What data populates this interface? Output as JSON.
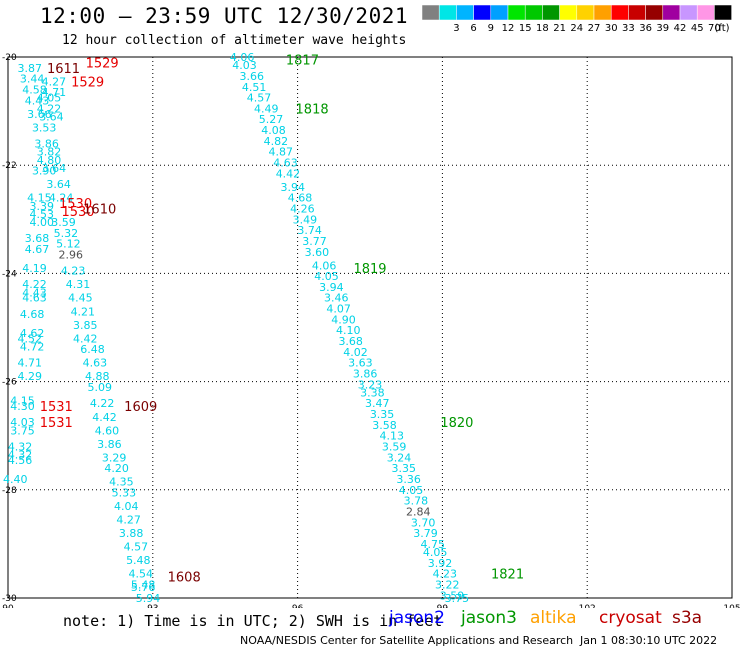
{
  "header": {
    "title": "12:00 – 23:59 UTC 12/30/2021",
    "subtitle": "12 hour collection of altimeter wave heights"
  },
  "legend": {
    "unit": "(ft)",
    "bins": [
      {
        "label": "",
        "color": "#808080"
      },
      {
        "label": "3",
        "color": "#00e6e6"
      },
      {
        "label": "6",
        "color": "#00b4ff"
      },
      {
        "label": "9",
        "color": "#0000ff"
      },
      {
        "label": "12",
        "color": "#00a0ff"
      },
      {
        "label": "15",
        "color": "#00e600"
      },
      {
        "label": "18",
        "color": "#00c800"
      },
      {
        "label": "21",
        "color": "#009600"
      },
      {
        "label": "24",
        "color": "#ffff00"
      },
      {
        "label": "27",
        "color": "#ffd200"
      },
      {
        "label": "30",
        "color": "#ffa000"
      },
      {
        "label": "33",
        "color": "#ff0000"
      },
      {
        "label": "36",
        "color": "#c80000"
      },
      {
        "label": "39",
        "color": "#960000"
      },
      {
        "label": "42",
        "color": "#a000a0"
      },
      {
        "label": "45",
        "color": "#c896ff"
      },
      {
        "label": "70",
        "color": "#ff96e6"
      },
      {
        "label": "",
        "color": "#000000"
      }
    ]
  },
  "map": {
    "lat_ticks": [
      "-20",
      "-22",
      "-24",
      "-26",
      "-28",
      "-30"
    ],
    "lon_ticks": [
      "90",
      "93",
      "96",
      "99",
      "102",
      "105"
    ],
    "lat_range": [
      -30,
      -20
    ],
    "lon_range": [
      90,
      105
    ]
  },
  "colors": {
    "swh": "#00d2e6",
    "swh_gray": "#505050",
    "jason2": "#0000ff",
    "jason3": "#009600",
    "altika": "#ffa000",
    "cryosat": "#c80000",
    "s3a": "#960000",
    "cryosat_mark": "#e60000",
    "s3a_mark": "#7a0000"
  },
  "time_labels": [
    {
      "text": "1817",
      "lon": 96.1,
      "lat": -20.05,
      "sat": "jason3"
    },
    {
      "text": "1818",
      "lon": 96.3,
      "lat": -20.95,
      "sat": "jason3"
    },
    {
      "text": "1819",
      "lon": 97.5,
      "lat": -23.9,
      "sat": "jason3"
    },
    {
      "text": "1820",
      "lon": 99.3,
      "lat": -26.75,
      "sat": "jason3"
    },
    {
      "text": "1821",
      "lon": 100.35,
      "lat": -29.55,
      "sat": "jason3"
    },
    {
      "text": "1529",
      "lon": 91.95,
      "lat": -20.1,
      "sat": "cryosat"
    },
    {
      "text": "1529",
      "lon": 91.65,
      "lat": -20.45,
      "sat": "cryosat"
    },
    {
      "text": "1530",
      "lon": 91.4,
      "lat": -22.7,
      "sat": "cryosat"
    },
    {
      "text": "1530",
      "lon": 91.45,
      "lat": -22.85,
      "sat": "cryosat"
    },
    {
      "text": "1531",
      "lon": 91.0,
      "lat": -26.45,
      "sat": "cryosat"
    },
    {
      "text": "1531",
      "lon": 91.0,
      "lat": -26.75,
      "sat": "cryosat"
    },
    {
      "text": "1611",
      "lon": 91.15,
      "lat": -20.2,
      "sat": "s3a"
    },
    {
      "text": "1610",
      "lon": 91.9,
      "lat": -22.8,
      "sat": "s3a"
    },
    {
      "text": "1609",
      "lon": 92.75,
      "lat": -26.45,
      "sat": "s3a"
    },
    {
      "text": "1608",
      "lon": 93.65,
      "lat": -29.6,
      "sat": "s3a"
    }
  ],
  "swh_labels": [
    {
      "text": "4.06",
      "lon": 94.85,
      "lat": -20.0
    },
    {
      "text": "4.03",
      "lon": 94.9,
      "lat": -20.15
    },
    {
      "text": "3.66",
      "lon": 95.05,
      "lat": -20.35
    },
    {
      "text": "4.51",
      "lon": 95.1,
      "lat": -20.55
    },
    {
      "text": "4.57",
      "lon": 95.2,
      "lat": -20.75
    },
    {
      "text": "4.49",
      "lon": 95.35,
      "lat": -20.95
    },
    {
      "text": "5.27",
      "lon": 95.45,
      "lat": -21.15
    },
    {
      "text": "4.08",
      "lon": 95.5,
      "lat": -21.35
    },
    {
      "text": "4.82",
      "lon": 95.55,
      "lat": -21.55
    },
    {
      "text": "4.87",
      "lon": 95.65,
      "lat": -21.75
    },
    {
      "text": "4.63",
      "lon": 95.75,
      "lat": -21.95
    },
    {
      "text": "4.42",
      "lon": 95.8,
      "lat": -22.15
    },
    {
      "text": "3.94",
      "lon": 95.9,
      "lat": -22.4
    },
    {
      "text": "4.68",
      "lon": 96.05,
      "lat": -22.6
    },
    {
      "text": "4.26",
      "lon": 96.1,
      "lat": -22.8
    },
    {
      "text": "3.49",
      "lon": 96.15,
      "lat": -23.0
    },
    {
      "text": "3.74",
      "lon": 96.25,
      "lat": -23.2
    },
    {
      "text": "3.77",
      "lon": 96.35,
      "lat": -23.4
    },
    {
      "text": "3.60",
      "lon": 96.4,
      "lat": -23.6
    },
    {
      "text": "4.06",
      "lon": 96.55,
      "lat": -23.85
    },
    {
      "text": "4.05",
      "lon": 96.6,
      "lat": -24.05
    },
    {
      "text": "3.94",
      "lon": 96.7,
      "lat": -24.25
    },
    {
      "text": "3.46",
      "lon": 96.8,
      "lat": -24.45
    },
    {
      "text": "4.07",
      "lon": 96.85,
      "lat": -24.65
    },
    {
      "text": "4.90",
      "lon": 96.95,
      "lat": -24.85
    },
    {
      "text": "4.10",
      "lon": 97.05,
      "lat": -25.05
    },
    {
      "text": "3.68",
      "lon": 97.1,
      "lat": -25.25
    },
    {
      "text": "4.02",
      "lon": 97.2,
      "lat": -25.45
    },
    {
      "text": "3.63",
      "lon": 97.3,
      "lat": -25.65
    },
    {
      "text": "3.86",
      "lon": 97.4,
      "lat": -25.85
    },
    {
      "text": "3.23",
      "lon": 97.5,
      "lat": -26.05
    },
    {
      "text": "3.38",
      "lon": 97.55,
      "lat": -26.2
    },
    {
      "text": "3.47",
      "lon": 97.65,
      "lat": -26.4
    },
    {
      "text": "3.35",
      "lon": 97.75,
      "lat": -26.6
    },
    {
      "text": "3.58",
      "lon": 97.8,
      "lat": -26.8
    },
    {
      "text": "4.13",
      "lon": 97.95,
      "lat": -27.0
    },
    {
      "text": "3.59",
      "lon": 98.0,
      "lat": -27.2
    },
    {
      "text": "3.24",
      "lon": 98.1,
      "lat": -27.4
    },
    {
      "text": "3.35",
      "lon": 98.2,
      "lat": -27.6
    },
    {
      "text": "3.36",
      "lon": 98.3,
      "lat": -27.8
    },
    {
      "text": "4.05",
      "lon": 98.35,
      "lat": -28.0
    },
    {
      "text": "3.78",
      "lon": 98.45,
      "lat": -28.2
    },
    {
      "text": "2.84",
      "lon": 98.5,
      "lat": -28.4,
      "gray": true
    },
    {
      "text": "3.70",
      "lon": 98.6,
      "lat": -28.6
    },
    {
      "text": "3.79",
      "lon": 98.65,
      "lat": -28.8
    },
    {
      "text": "4.75",
      "lon": 98.8,
      "lat": -29.0
    },
    {
      "text": "4.05",
      "lon": 98.85,
      "lat": -29.15
    },
    {
      "text": "3.92",
      "lon": 98.95,
      "lat": -29.35
    },
    {
      "text": "4.23",
      "lon": 99.05,
      "lat": -29.55
    },
    {
      "text": "3.22",
      "lon": 99.1,
      "lat": -29.75
    },
    {
      "text": "3.59",
      "lon": 99.2,
      "lat": -29.95
    },
    {
      "text": "3.75",
      "lon": 99.3,
      "lat": -30.0
    },
    {
      "text": "3.87",
      "lon": 90.45,
      "lat": -20.2
    },
    {
      "text": "3.44",
      "lon": 90.5,
      "lat": -20.4
    },
    {
      "text": "4.27",
      "lon": 90.95,
      "lat": -20.45
    },
    {
      "text": "4.58",
      "lon": 90.55,
      "lat": -20.6
    },
    {
      "text": "4.71",
      "lon": 90.95,
      "lat": -20.65
    },
    {
      "text": "4.43",
      "lon": 90.6,
      "lat": -20.8
    },
    {
      "text": "4.05",
      "lon": 90.85,
      "lat": -20.75
    },
    {
      "text": "4.22",
      "lon": 90.85,
      "lat": -20.95
    },
    {
      "text": "3.66",
      "lon": 90.65,
      "lat": -21.05
    },
    {
      "text": "3.64",
      "lon": 90.9,
      "lat": -21.1
    },
    {
      "text": "3.53",
      "lon": 90.75,
      "lat": -21.3
    },
    {
      "text": "3.86",
      "lon": 90.8,
      "lat": -21.6
    },
    {
      "text": "3.82",
      "lon": 90.85,
      "lat": -21.75
    },
    {
      "text": "4.80",
      "lon": 90.85,
      "lat": -21.9
    },
    {
      "text": "3.64",
      "lon": 90.95,
      "lat": -22.05
    },
    {
      "text": "3.90",
      "lon": 90.75,
      "lat": -22.1
    },
    {
      "text": "3.64",
      "lon": 91.05,
      "lat": -22.35
    },
    {
      "text": "4.15",
      "lon": 90.65,
      "lat": -22.6
    },
    {
      "text": "4.24",
      "lon": 91.1,
      "lat": -22.6
    },
    {
      "text": "3.39",
      "lon": 90.7,
      "lat": -22.75
    },
    {
      "text": "4.53",
      "lon": 90.7,
      "lat": -22.9
    },
    {
      "text": "4.00",
      "lon": 90.7,
      "lat": -23.05
    },
    {
      "text": "3.59",
      "lon": 91.15,
      "lat": -23.05
    },
    {
      "text": "5.32",
      "lon": 91.2,
      "lat": -23.25
    },
    {
      "text": "3.68",
      "lon": 90.6,
      "lat": -23.35
    },
    {
      "text": "5.12",
      "lon": 91.25,
      "lat": -23.45
    },
    {
      "text": "4.67",
      "lon": 90.6,
      "lat": -23.55
    },
    {
      "text": "2.96",
      "lon": 91.3,
      "lat": -23.65,
      "gray": true
    },
    {
      "text": "4.19",
      "lon": 90.55,
      "lat": -23.9
    },
    {
      "text": "4.23",
      "lon": 91.35,
      "lat": -23.95
    },
    {
      "text": "4.22",
      "lon": 90.55,
      "lat": -24.2
    },
    {
      "text": "4.31",
      "lon": 91.45,
      "lat": -24.2
    },
    {
      "text": "4.43",
      "lon": 90.55,
      "lat": -24.35
    },
    {
      "text": "4.63",
      "lon": 90.55,
      "lat": -24.45
    },
    {
      "text": "4.45",
      "lon": 91.5,
      "lat": -24.45
    },
    {
      "text": "4.68",
      "lon": 90.5,
      "lat": -24.75
    },
    {
      "text": "4.21",
      "lon": 91.55,
      "lat": -24.7
    },
    {
      "text": "3.85",
      "lon": 91.6,
      "lat": -24.95
    },
    {
      "text": "4.62",
      "lon": 90.5,
      "lat": -25.1
    },
    {
      "text": "4.52",
      "lon": 90.45,
      "lat": -25.2
    },
    {
      "text": "4.42",
      "lon": 91.6,
      "lat": -25.2
    },
    {
      "text": "4.72",
      "lon": 90.5,
      "lat": -25.35
    },
    {
      "text": "6.48",
      "lon": 91.75,
      "lat": -25.4
    },
    {
      "text": "4.71",
      "lon": 90.45,
      "lat": -25.65
    },
    {
      "text": "4.63",
      "lon": 91.8,
      "lat": -25.65
    },
    {
      "text": "4.29",
      "lon": 90.45,
      "lat": -25.9
    },
    {
      "text": "4.88",
      "lon": 91.85,
      "lat": -25.9
    },
    {
      "text": "5.09",
      "lon": 91.9,
      "lat": -26.1
    },
    {
      "text": "4.15",
      "lon": 90.3,
      "lat": -26.35
    },
    {
      "text": "4.30",
      "lon": 90.3,
      "lat": -26.45
    },
    {
      "text": "4.22",
      "lon": 91.95,
      "lat": -26.4
    },
    {
      "text": "4.03",
      "lon": 90.3,
      "lat": -26.75
    },
    {
      "text": "4.42",
      "lon": 92.0,
      "lat": -26.65
    },
    {
      "text": "3.75",
      "lon": 90.3,
      "lat": -26.9
    },
    {
      "text": "4.60",
      "lon": 92.05,
      "lat": -26.9
    },
    {
      "text": "3.86",
      "lon": 92.1,
      "lat": -27.15
    },
    {
      "text": "4.32",
      "lon": 90.25,
      "lat": -27.2
    },
    {
      "text": "4.32",
      "lon": 90.25,
      "lat": -27.35
    },
    {
      "text": "4.56",
      "lon": 90.25,
      "lat": -27.45
    },
    {
      "text": "3.29",
      "lon": 92.2,
      "lat": -27.4
    },
    {
      "text": "4.20",
      "lon": 92.25,
      "lat": -27.6
    },
    {
      "text": "4.40",
      "lon": 90.15,
      "lat": -27.8
    },
    {
      "text": "4.35",
      "lon": 92.35,
      "lat": -27.85
    },
    {
      "text": "5.33",
      "lon": 92.4,
      "lat": -28.05
    },
    {
      "text": "4.04",
      "lon": 92.45,
      "lat": -28.3
    },
    {
      "text": "4.27",
      "lon": 92.5,
      "lat": -28.55
    },
    {
      "text": "3.88",
      "lon": 92.55,
      "lat": -28.8
    },
    {
      "text": "4.57",
      "lon": 92.65,
      "lat": -29.05
    },
    {
      "text": "5.48",
      "lon": 92.7,
      "lat": -29.3
    },
    {
      "text": "4.54",
      "lon": 92.75,
      "lat": -29.55
    },
    {
      "text": "5.48",
      "lon": 92.8,
      "lat": -29.75
    },
    {
      "text": "5.76",
      "lon": 92.8,
      "lat": -29.8
    },
    {
      "text": "5.94",
      "lon": 92.9,
      "lat": -30.0
    }
  ],
  "notes": {
    "note": "note:  1) Time is in UTC;  2) SWH is in feet",
    "jason2": "jason2",
    "jason3": "jason3",
    "altika": "altika",
    "cryosat": "cryosat",
    "s3a": "s3a"
  },
  "footer": {
    "center": "NOAA/NESDIS Center for Satellite Applications and Research",
    "timestamp": "Jan  1 08:30:10 UTC 2022"
  }
}
